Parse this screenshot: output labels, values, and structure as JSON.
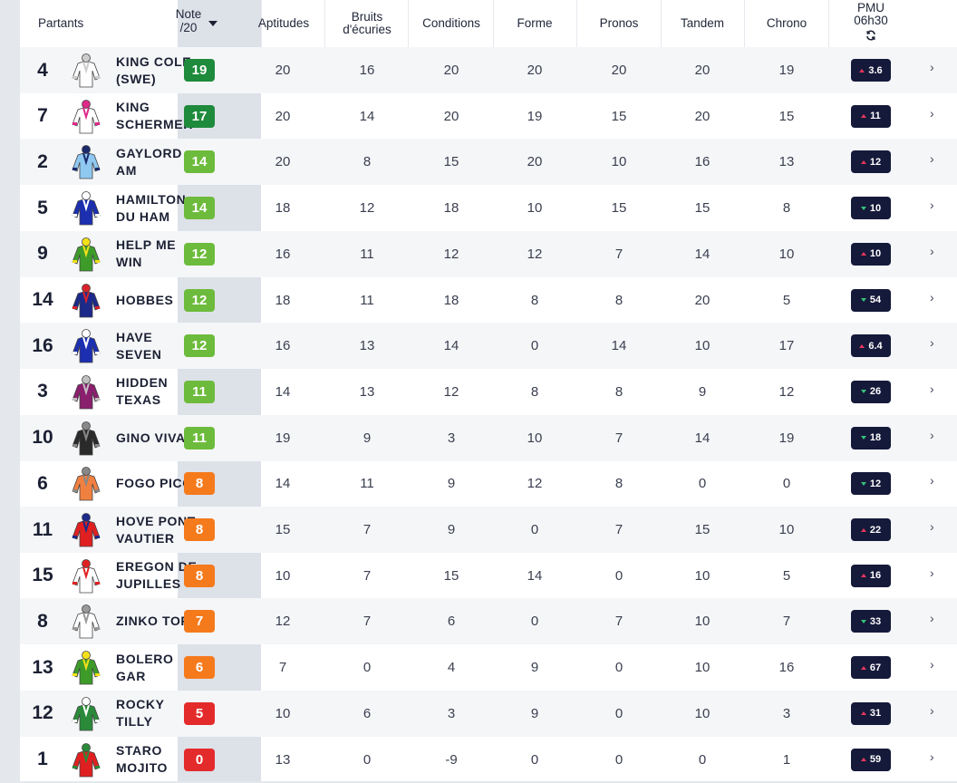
{
  "header": {
    "partants": "Partants",
    "note": "Note /20",
    "aptitudes": "Aptitudes",
    "bruits": "Bruits d'écuries",
    "conditions": "Conditions",
    "forme": "Forme",
    "pronos": "Pronos",
    "tandem": "Tandem",
    "chrono": "Chrono",
    "pmu_line1": "PMU",
    "pmu_line2": "06h30"
  },
  "colors": {
    "note_green_dark": "#1e8a3c",
    "note_green": "#6dbb3c",
    "note_orange": "#f57a1c",
    "note_red": "#e42b2b",
    "odds_bg": "#15193a",
    "odds_up": "#e8365d",
    "odds_down": "#34c37a"
  },
  "runners": [
    {
      "num": "4",
      "name": "KING COLE (SWE)",
      "note": "19",
      "note_color": "#1e8a3c",
      "apt": "20",
      "bruits": "16",
      "cond": "20",
      "forme": "20",
      "pronos": "20",
      "tandem": "20",
      "chrono": "19",
      "odds": "3.6",
      "trend": "up",
      "silk": "#ffffff",
      "silk2": "#cccccc",
      "silk_icon": "silk-white-icon"
    },
    {
      "num": "7",
      "name": "KING SCHERMER",
      "note": "17",
      "note_color": "#1e8a3c",
      "apt": "20",
      "bruits": "14",
      "cond": "20",
      "forme": "19",
      "pronos": "15",
      "tandem": "20",
      "chrono": "15",
      "odds": "11",
      "trend": "up",
      "silk": "#ffffff",
      "silk2": "#e0288a",
      "silk_icon": "silk-pink-white-icon"
    },
    {
      "num": "2",
      "name": "GAYLORD AM",
      "note": "14",
      "note_color": "#6dbb3c",
      "apt": "20",
      "bruits": "8",
      "cond": "15",
      "forme": "20",
      "pronos": "10",
      "tandem": "16",
      "chrono": "13",
      "odds": "12",
      "trend": "up",
      "silk": "#8fc8f0",
      "silk2": "#1b2a6b",
      "silk_icon": "silk-lightblue-icon"
    },
    {
      "num": "5",
      "name": "HAMILTON DU HAM",
      "note": "14",
      "note_color": "#6dbb3c",
      "apt": "18",
      "bruits": "12",
      "cond": "18",
      "forme": "10",
      "pronos": "15",
      "tandem": "15",
      "chrono": "8",
      "odds": "10",
      "trend": "down",
      "silk": "#1c2fb0",
      "silk2": "#ffffff",
      "silk_icon": "silk-blue-chevron-icon"
    },
    {
      "num": "9",
      "name": "HELP ME WIN",
      "note": "12",
      "note_color": "#6dbb3c",
      "apt": "16",
      "bruits": "11",
      "cond": "12",
      "forme": "12",
      "pronos": "7",
      "tandem": "14",
      "chrono": "10",
      "odds": "10",
      "trend": "up",
      "silk": "#3d9b2a",
      "silk2": "#f2e01a",
      "silk_icon": "silk-green-yellow-icon"
    },
    {
      "num": "14",
      "name": "HOBBES",
      "note": "12",
      "note_color": "#6dbb3c",
      "apt": "18",
      "bruits": "11",
      "cond": "18",
      "forme": "8",
      "pronos": "8",
      "tandem": "20",
      "chrono": "5",
      "odds": "54",
      "trend": "down",
      "silk": "#1c2a8a",
      "silk2": "#d8232a",
      "silk_icon": "silk-navy-red-icon"
    },
    {
      "num": "16",
      "name": "HAVE SEVEN",
      "note": "12",
      "note_color": "#6dbb3c",
      "apt": "16",
      "bruits": "13",
      "cond": "14",
      "forme": "0",
      "pronos": "14",
      "tandem": "10",
      "chrono": "17",
      "odds": "6.4",
      "trend": "up",
      "silk": "#1c2fb0",
      "silk2": "#ffffff",
      "silk_icon": "silk-blue-chevron-icon"
    },
    {
      "num": "3",
      "name": "HIDDEN TEXAS",
      "note": "11",
      "note_color": "#6dbb3c",
      "apt": "14",
      "bruits": "13",
      "cond": "12",
      "forme": "8",
      "pronos": "8",
      "tandem": "9",
      "chrono": "12",
      "odds": "26",
      "trend": "down",
      "silk": "#8a1f6e",
      "silk2": "#c0c0c0",
      "silk_icon": "silk-purple-icon"
    },
    {
      "num": "10",
      "name": "GINO VIVA",
      "note": "11",
      "note_color": "#6dbb3c",
      "apt": "19",
      "bruits": "9",
      "cond": "3",
      "forme": "10",
      "pronos": "7",
      "tandem": "14",
      "chrono": "19",
      "odds": "18",
      "trend": "down",
      "silk": "#2a2a2a",
      "silk2": "#888888",
      "silk_icon": "silk-black-icon"
    },
    {
      "num": "6",
      "name": "FOGO PICO",
      "note": "8",
      "note_color": "#f57a1c",
      "apt": "14",
      "bruits": "11",
      "cond": "9",
      "forme": "12",
      "pronos": "8",
      "tandem": "0",
      "chrono": "0",
      "odds": "12",
      "trend": "down",
      "silk": "#f08040",
      "silk2": "#888888",
      "silk_icon": "silk-orange-icon"
    },
    {
      "num": "11",
      "name": "HOVE PONT VAUTIER",
      "note": "8",
      "note_color": "#f57a1c",
      "apt": "15",
      "bruits": "7",
      "cond": "9",
      "forme": "0",
      "pronos": "7",
      "tandem": "15",
      "chrono": "10",
      "odds": "22",
      "trend": "up",
      "silk": "#e02020",
      "silk2": "#1c2a8a",
      "silk_icon": "silk-red-icon"
    },
    {
      "num": "15",
      "name": "EREGON DE JUPILLES",
      "note": "8",
      "note_color": "#f57a1c",
      "apt": "10",
      "bruits": "7",
      "cond": "15",
      "forme": "14",
      "pronos": "0",
      "tandem": "10",
      "chrono": "5",
      "odds": "16",
      "trend": "up",
      "silk": "#ffffff",
      "silk2": "#e02020",
      "silk_icon": "silk-white-red-stars-icon"
    },
    {
      "num": "8",
      "name": "ZINKO TOP",
      "note": "7",
      "note_color": "#f57a1c",
      "apt": "12",
      "bruits": "7",
      "cond": "6",
      "forme": "0",
      "pronos": "7",
      "tandem": "10",
      "chrono": "7",
      "odds": "33",
      "trend": "down",
      "silk": "#ffffff",
      "silk2": "#999999",
      "silk_icon": "silk-grey-check-icon"
    },
    {
      "num": "13",
      "name": "BOLERO GAR",
      "note": "6",
      "note_color": "#f57a1c",
      "apt": "7",
      "bruits": "0",
      "cond": "4",
      "forme": "9",
      "pronos": "0",
      "tandem": "10",
      "chrono": "16",
      "odds": "67",
      "trend": "up",
      "silk": "#3d9b2a",
      "silk2": "#f2e01a",
      "silk_icon": "silk-green-icon"
    },
    {
      "num": "12",
      "name": "ROCKY TILLY",
      "note": "5",
      "note_color": "#e42b2b",
      "apt": "10",
      "bruits": "6",
      "cond": "3",
      "forme": "9",
      "pronos": "0",
      "tandem": "10",
      "chrono": "3",
      "odds": "31",
      "trend": "up",
      "silk": "#2a8a3a",
      "silk2": "#ffffff",
      "silk_icon": "silk-green-white-icon"
    },
    {
      "num": "1",
      "name": "STARO MOJITO",
      "note": "0",
      "note_color": "#e42b2b",
      "apt": "13",
      "bruits": "0",
      "cond": "-9",
      "forme": "0",
      "pronos": "0",
      "tandem": "0",
      "chrono": "1",
      "odds": "59",
      "trend": "up",
      "silk": "#e02020",
      "silk2": "#2a8a3a",
      "silk_icon": "silk-red-green-icon"
    }
  ]
}
